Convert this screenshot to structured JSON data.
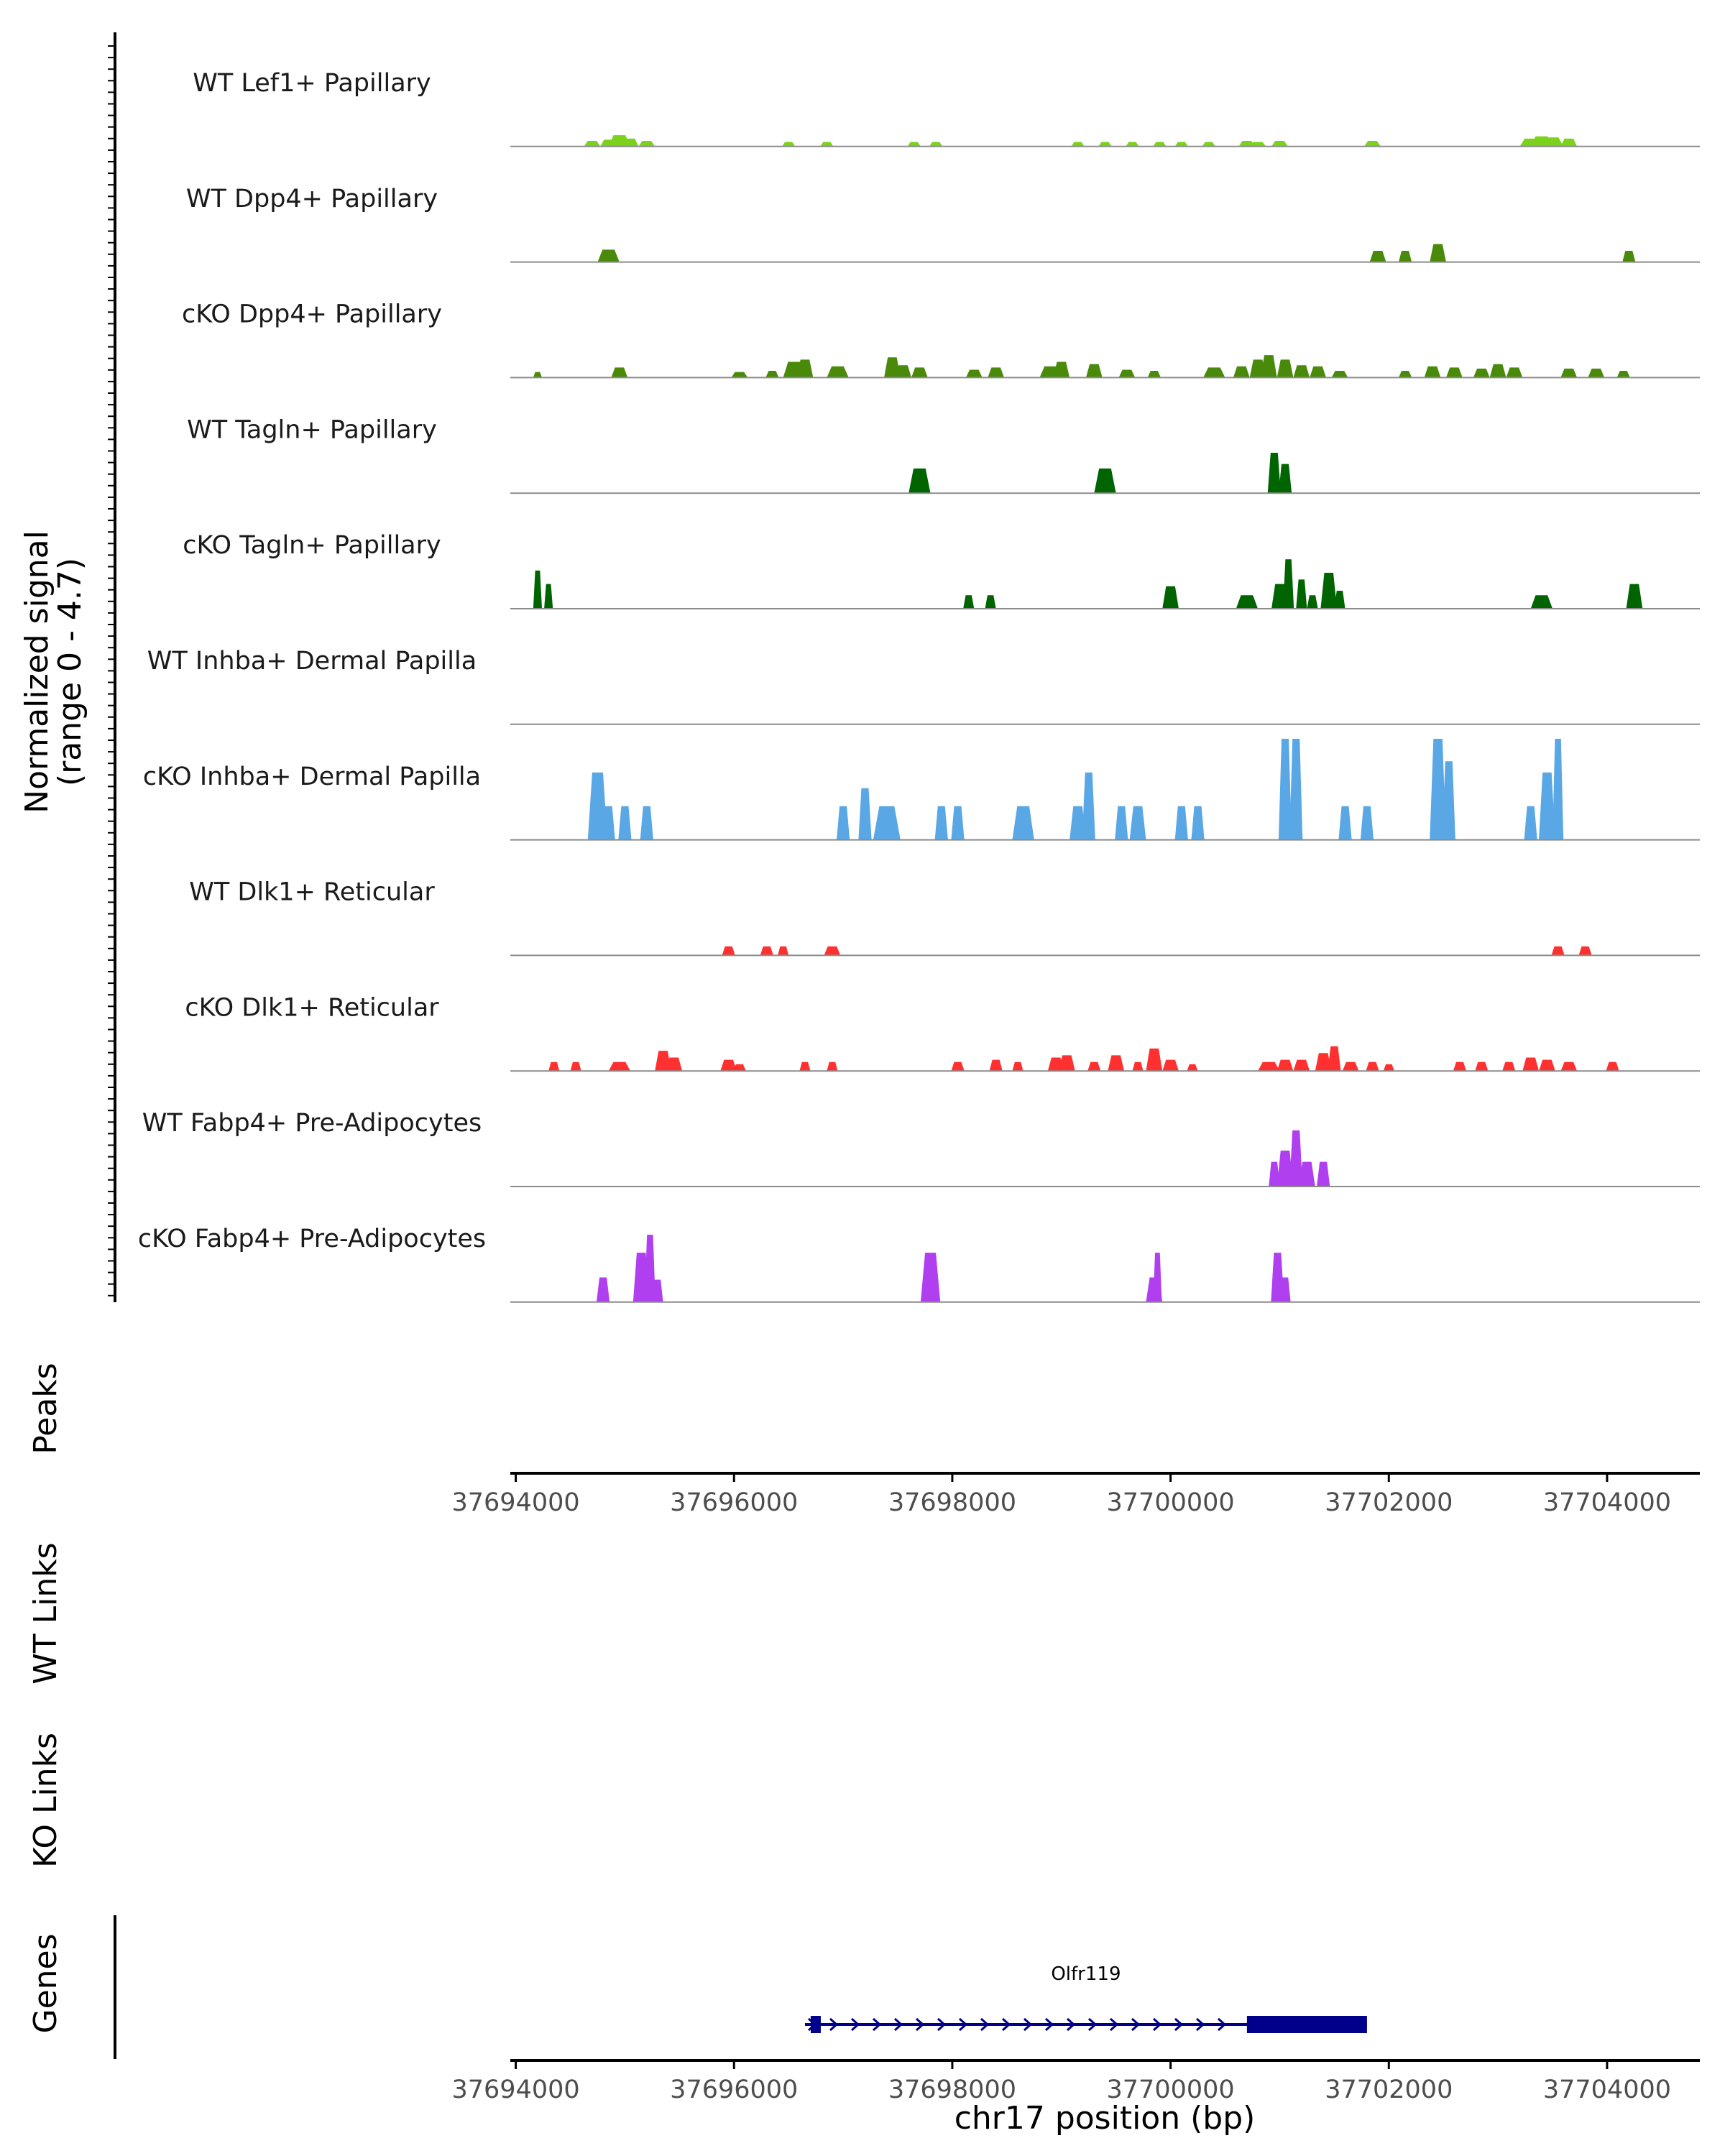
{
  "chart_data": {
    "type": "area",
    "title": "",
    "ylabel_lines": [
      "Normalized signal",
      "(range 0 - 4.7)"
    ],
    "ylim": [
      0,
      4.7
    ],
    "xlabel": "chr17 position (bp)",
    "xlim": [
      37693950,
      37704850
    ],
    "xticks": [
      37694000,
      37696000,
      37698000,
      37700000,
      37702000,
      37704000
    ],
    "xtick_labels": [
      "37694000",
      "37696000",
      "37698000",
      "37700000",
      "37702000",
      "37704000"
    ],
    "tracks": [
      {
        "name": "WT Lef1+ Papillary",
        "color": "#7cd11c",
        "peaks": [
          [
            37694700,
            0.25,
            150
          ],
          [
            37694850,
            0.3,
            150
          ],
          [
            37694950,
            0.5,
            200
          ],
          [
            37695050,
            0.35,
            150
          ],
          [
            37695200,
            0.25,
            150
          ],
          [
            37696500,
            0.2,
            120
          ],
          [
            37696850,
            0.2,
            120
          ],
          [
            37697650,
            0.2,
            120
          ],
          [
            37697850,
            0.2,
            120
          ],
          [
            37699150,
            0.2,
            120
          ],
          [
            37699400,
            0.2,
            120
          ],
          [
            37699650,
            0.2,
            120
          ],
          [
            37699900,
            0.2,
            120
          ],
          [
            37700100,
            0.2,
            120
          ],
          [
            37700350,
            0.2,
            120
          ],
          [
            37700700,
            0.25,
            150
          ],
          [
            37700800,
            0.2,
            150
          ],
          [
            37701000,
            0.25,
            150
          ],
          [
            37701850,
            0.25,
            150
          ],
          [
            37703300,
            0.35,
            200
          ],
          [
            37703400,
            0.45,
            200
          ],
          [
            37703500,
            0.4,
            200
          ],
          [
            37703650,
            0.35,
            150
          ]
        ]
      },
      {
        "name": "WT Dpp4+ Papillary",
        "color": "#4a8a0a",
        "peaks": [
          [
            37694850,
            0.55,
            200
          ],
          [
            37701900,
            0.5,
            150
          ],
          [
            37702150,
            0.5,
            120
          ],
          [
            37702450,
            0.8,
            150
          ],
          [
            37704200,
            0.5,
            120
          ]
        ]
      },
      {
        "name": "cKO Dpp4+ Papillary",
        "color": "#4a8a0a",
        "peaks": [
          [
            37694200,
            0.25,
            80
          ],
          [
            37694950,
            0.45,
            150
          ],
          [
            37696050,
            0.25,
            150
          ],
          [
            37696350,
            0.3,
            120
          ],
          [
            37696550,
            0.7,
            200
          ],
          [
            37696650,
            0.8,
            150
          ],
          [
            37696950,
            0.5,
            200
          ],
          [
            37697450,
            0.9,
            150
          ],
          [
            37697550,
            0.55,
            150
          ],
          [
            37697700,
            0.45,
            150
          ],
          [
            37698200,
            0.35,
            150
          ],
          [
            37698400,
            0.45,
            150
          ],
          [
            37698900,
            0.5,
            200
          ],
          [
            37699000,
            0.7,
            150
          ],
          [
            37699300,
            0.6,
            150
          ],
          [
            37699600,
            0.35,
            150
          ],
          [
            37699850,
            0.3,
            120
          ],
          [
            37700400,
            0.45,
            200
          ],
          [
            37700650,
            0.5,
            150
          ],
          [
            37700800,
            0.8,
            150
          ],
          [
            37700900,
            1.0,
            150
          ],
          [
            37701050,
            0.8,
            150
          ],
          [
            37701200,
            0.55,
            150
          ],
          [
            37701350,
            0.5,
            150
          ],
          [
            37701550,
            0.3,
            150
          ],
          [
            37702150,
            0.3,
            120
          ],
          [
            37702400,
            0.5,
            150
          ],
          [
            37702600,
            0.45,
            150
          ],
          [
            37702850,
            0.4,
            150
          ],
          [
            37703000,
            0.6,
            150
          ],
          [
            37703150,
            0.45,
            150
          ],
          [
            37703650,
            0.4,
            150
          ],
          [
            37703900,
            0.4,
            150
          ],
          [
            37704150,
            0.3,
            120
          ]
        ]
      },
      {
        "name": "WT Tagln+ Papillary",
        "color": "#006400",
        "peaks": [
          [
            37697700,
            1.1,
            200
          ],
          [
            37699400,
            1.1,
            200
          ],
          [
            37700950,
            1.8,
            120
          ],
          [
            37701050,
            1.3,
            120
          ]
        ]
      },
      {
        "name": "cKO Tagln+ Papillary",
        "color": "#006400",
        "peaks": [
          [
            37694200,
            1.7,
            80
          ],
          [
            37694300,
            1.1,
            80
          ],
          [
            37698150,
            0.6,
            100
          ],
          [
            37698350,
            0.6,
            100
          ],
          [
            37700000,
            1.0,
            150
          ],
          [
            37700700,
            0.6,
            200
          ],
          [
            37701000,
            1.1,
            150
          ],
          [
            37701080,
            2.2,
            100
          ],
          [
            37701200,
            1.3,
            100
          ],
          [
            37701300,
            0.6,
            100
          ],
          [
            37701450,
            1.6,
            150
          ],
          [
            37701550,
            0.8,
            100
          ],
          [
            37703400,
            0.6,
            200
          ],
          [
            37704250,
            1.1,
            150
          ]
        ]
      },
      {
        "name": "WT Inhba+ Dermal Papilla",
        "color": "#5aa7e6",
        "peaks": []
      },
      {
        "name": "cKO Inhba+ Dermal Papilla",
        "color": "#5aa7e6",
        "peaks": [
          [
            37694750,
            3.0,
            180
          ],
          [
            37694850,
            1.5,
            120
          ],
          [
            37695000,
            1.5,
            120
          ],
          [
            37695200,
            1.5,
            120
          ],
          [
            37697000,
            1.5,
            120
          ],
          [
            37697200,
            2.3,
            120
          ],
          [
            37697400,
            1.5,
            250
          ],
          [
            37697900,
            1.5,
            120
          ],
          [
            37698050,
            1.5,
            120
          ],
          [
            37698650,
            1.5,
            200
          ],
          [
            37699150,
            1.5,
            150
          ],
          [
            37699250,
            3.0,
            120
          ],
          [
            37699550,
            1.5,
            120
          ],
          [
            37699700,
            1.5,
            150
          ],
          [
            37700100,
            1.5,
            120
          ],
          [
            37700250,
            1.5,
            120
          ],
          [
            37701050,
            4.5,
            120
          ],
          [
            37701150,
            4.5,
            120
          ],
          [
            37701600,
            1.5,
            120
          ],
          [
            37701800,
            1.5,
            120
          ],
          [
            37702450,
            4.5,
            150
          ],
          [
            37702550,
            3.5,
            120
          ],
          [
            37703300,
            1.5,
            120
          ],
          [
            37703450,
            3.0,
            150
          ],
          [
            37703550,
            4.5,
            100
          ]
        ]
      },
      {
        "name": "WT Dlk1+ Reticular",
        "color": "#ff3030",
        "peaks": [
          [
            37695950,
            0.4,
            120
          ],
          [
            37696300,
            0.4,
            120
          ],
          [
            37696450,
            0.4,
            100
          ],
          [
            37696900,
            0.4,
            150
          ],
          [
            37703550,
            0.4,
            120
          ],
          [
            37703800,
            0.4,
            120
          ]
        ]
      },
      {
        "name": "cKO Dlk1+ Reticular",
        "color": "#ff3030",
        "peaks": [
          [
            37694350,
            0.4,
            100
          ],
          [
            37694550,
            0.4,
            100
          ],
          [
            37694950,
            0.4,
            200
          ],
          [
            37695350,
            0.9,
            150
          ],
          [
            37695450,
            0.6,
            150
          ],
          [
            37695950,
            0.5,
            150
          ],
          [
            37696050,
            0.3,
            120
          ],
          [
            37696650,
            0.4,
            100
          ],
          [
            37696900,
            0.4,
            100
          ],
          [
            37698050,
            0.4,
            120
          ],
          [
            37698400,
            0.5,
            120
          ],
          [
            37698600,
            0.4,
            100
          ],
          [
            37698950,
            0.6,
            150
          ],
          [
            37699050,
            0.7,
            150
          ],
          [
            37699300,
            0.4,
            120
          ],
          [
            37699500,
            0.7,
            150
          ],
          [
            37699700,
            0.4,
            100
          ],
          [
            37699850,
            1.0,
            150
          ],
          [
            37700000,
            0.5,
            150
          ],
          [
            37700200,
            0.3,
            100
          ],
          [
            37700900,
            0.4,
            200
          ],
          [
            37701050,
            0.5,
            150
          ],
          [
            37701200,
            0.5,
            150
          ],
          [
            37701400,
            0.8,
            150
          ],
          [
            37701500,
            1.1,
            120
          ],
          [
            37701650,
            0.4,
            150
          ],
          [
            37701850,
            0.4,
            120
          ],
          [
            37702000,
            0.3,
            100
          ],
          [
            37702650,
            0.4,
            120
          ],
          [
            37702850,
            0.4,
            120
          ],
          [
            37703100,
            0.4,
            120
          ],
          [
            37703300,
            0.6,
            150
          ],
          [
            37703450,
            0.5,
            150
          ],
          [
            37703650,
            0.4,
            150
          ],
          [
            37704050,
            0.4,
            120
          ]
        ]
      },
      {
        "name": "WT Fabp4+ Pre-Adipocytes",
        "color": "#b03ff0",
        "peaks": [
          [
            37700950,
            1.1,
            100
          ],
          [
            37701050,
            1.6,
            150
          ],
          [
            37701150,
            2.5,
            120
          ],
          [
            37701250,
            1.1,
            150
          ],
          [
            37701400,
            1.1,
            120
          ]
        ]
      },
      {
        "name": "cKO Fabp4+ Pre-Adipocytes",
        "color": "#b03ff0",
        "peaks": [
          [
            37694800,
            1.1,
            120
          ],
          [
            37695150,
            2.2,
            150
          ],
          [
            37695230,
            3.0,
            100
          ],
          [
            37695300,
            1.0,
            100
          ],
          [
            37697800,
            2.2,
            180
          ],
          [
            37699850,
            1.1,
            150
          ],
          [
            37699880,
            2.2,
            80
          ],
          [
            37700980,
            2.2,
            120
          ],
          [
            37701050,
            1.1,
            100
          ]
        ]
      }
    ],
    "lower_tracks": [
      "Peaks",
      "WT Links",
      "KO Links",
      "Genes"
    ],
    "gene": {
      "name": "Olfr119",
      "start": 37696650,
      "end": 37701800,
      "cds_start": 37700700,
      "strand": "+"
    }
  }
}
